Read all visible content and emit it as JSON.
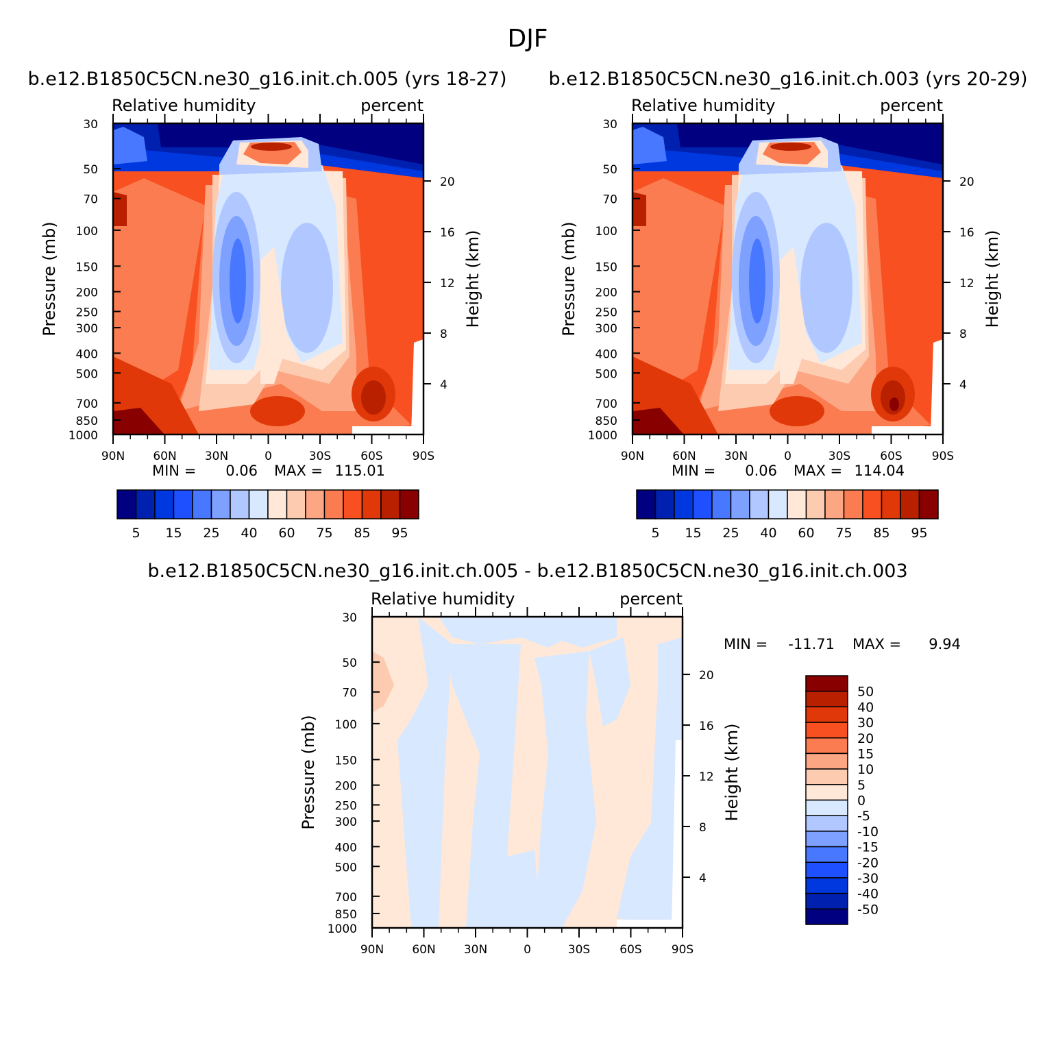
{
  "page_title": "DJF",
  "colors": {
    "full_field": [
      "#000080",
      "#0020b0",
      "#0038e0",
      "#1e50ff",
      "#4878ff",
      "#7ea0ff",
      "#b0c8ff",
      "#d8e8ff",
      "#ffe8d8",
      "#fdcbb0",
      "#fca684",
      "#fa7c50",
      "#f85020",
      "#e03808",
      "#b82000",
      "#880000"
    ],
    "difference": [
      "#000080",
      "#0020b0",
      "#0038e0",
      "#1e50ff",
      "#4878ff",
      "#7ea0ff",
      "#b0c8ff",
      "#d8e8ff",
      "#ffe8d8",
      "#fdcbb0",
      "#fca684",
      "#fa7c50",
      "#f85020",
      "#e03808",
      "#b82000",
      "#880000"
    ]
  },
  "chart_data": [
    {
      "type": "heatmap",
      "title": "b.e12.B1850C5CN.ne30_g16.init.ch.005 (yrs 18-27)",
      "variable": "Relative humidity",
      "units": "percent",
      "xlabel": "",
      "ylabel": "Pressure (mb)",
      "y2label": "Height (km)",
      "x_ticks": [
        "90N",
        "60N",
        "30N",
        "0",
        "30S",
        "60S",
        "90S"
      ],
      "y_ticks": [
        30,
        50,
        70,
        100,
        150,
        200,
        250,
        300,
        400,
        500,
        700,
        850,
        1000
      ],
      "y_scale": "log",
      "y_range": [
        30,
        1000
      ],
      "height_ticks": [
        4,
        8,
        12,
        16,
        20
      ],
      "min_label": "MIN =",
      "min_value": "0.06",
      "max_label": "MAX =",
      "max_value": "115.01",
      "colorbar_labels": [
        "5",
        "15",
        "25",
        "40",
        "60",
        "75",
        "85",
        "95"
      ]
    },
    {
      "type": "heatmap",
      "title": "b.e12.B1850C5CN.ne30_g16.init.ch.003 (yrs 20-29)",
      "variable": "Relative humidity",
      "units": "percent",
      "xlabel": "",
      "ylabel": "Pressure (mb)",
      "y2label": "Height (km)",
      "x_ticks": [
        "90N",
        "60N",
        "30N",
        "0",
        "30S",
        "60S",
        "90S"
      ],
      "y_ticks": [
        30,
        50,
        70,
        100,
        150,
        200,
        250,
        300,
        400,
        500,
        700,
        850,
        1000
      ],
      "y_scale": "log",
      "y_range": [
        30,
        1000
      ],
      "height_ticks": [
        4,
        8,
        12,
        16,
        20
      ],
      "min_label": "MIN =",
      "min_value": "0.06",
      "max_label": "MAX =",
      "max_value": "114.04",
      "colorbar_labels": [
        "5",
        "15",
        "25",
        "40",
        "60",
        "75",
        "85",
        "95"
      ]
    },
    {
      "type": "heatmap",
      "title": "b.e12.B1850C5CN.ne30_g16.init.ch.005 - b.e12.B1850C5CN.ne30_g16.init.ch.003",
      "variable": "Relative humidity",
      "units": "percent",
      "xlabel": "",
      "ylabel": "Pressure (mb)",
      "y2label": "Height (km)",
      "x_ticks": [
        "90N",
        "60N",
        "30N",
        "0",
        "30S",
        "60S",
        "90S"
      ],
      "y_ticks": [
        30,
        50,
        70,
        100,
        150,
        200,
        250,
        300,
        400,
        500,
        700,
        850,
        1000
      ],
      "y_scale": "log",
      "y_range": [
        30,
        1000
      ],
      "height_ticks": [
        4,
        8,
        12,
        16,
        20
      ],
      "min_label": "MIN =",
      "min_value": "-11.71",
      "max_label": "MAX =",
      "max_value": "9.94",
      "colorbar_labels": [
        "50",
        "40",
        "30",
        "20",
        "15",
        "10",
        "5",
        "0",
        "-5",
        "-10",
        "-15",
        "-20",
        "-30",
        "-40",
        "-50"
      ]
    }
  ]
}
